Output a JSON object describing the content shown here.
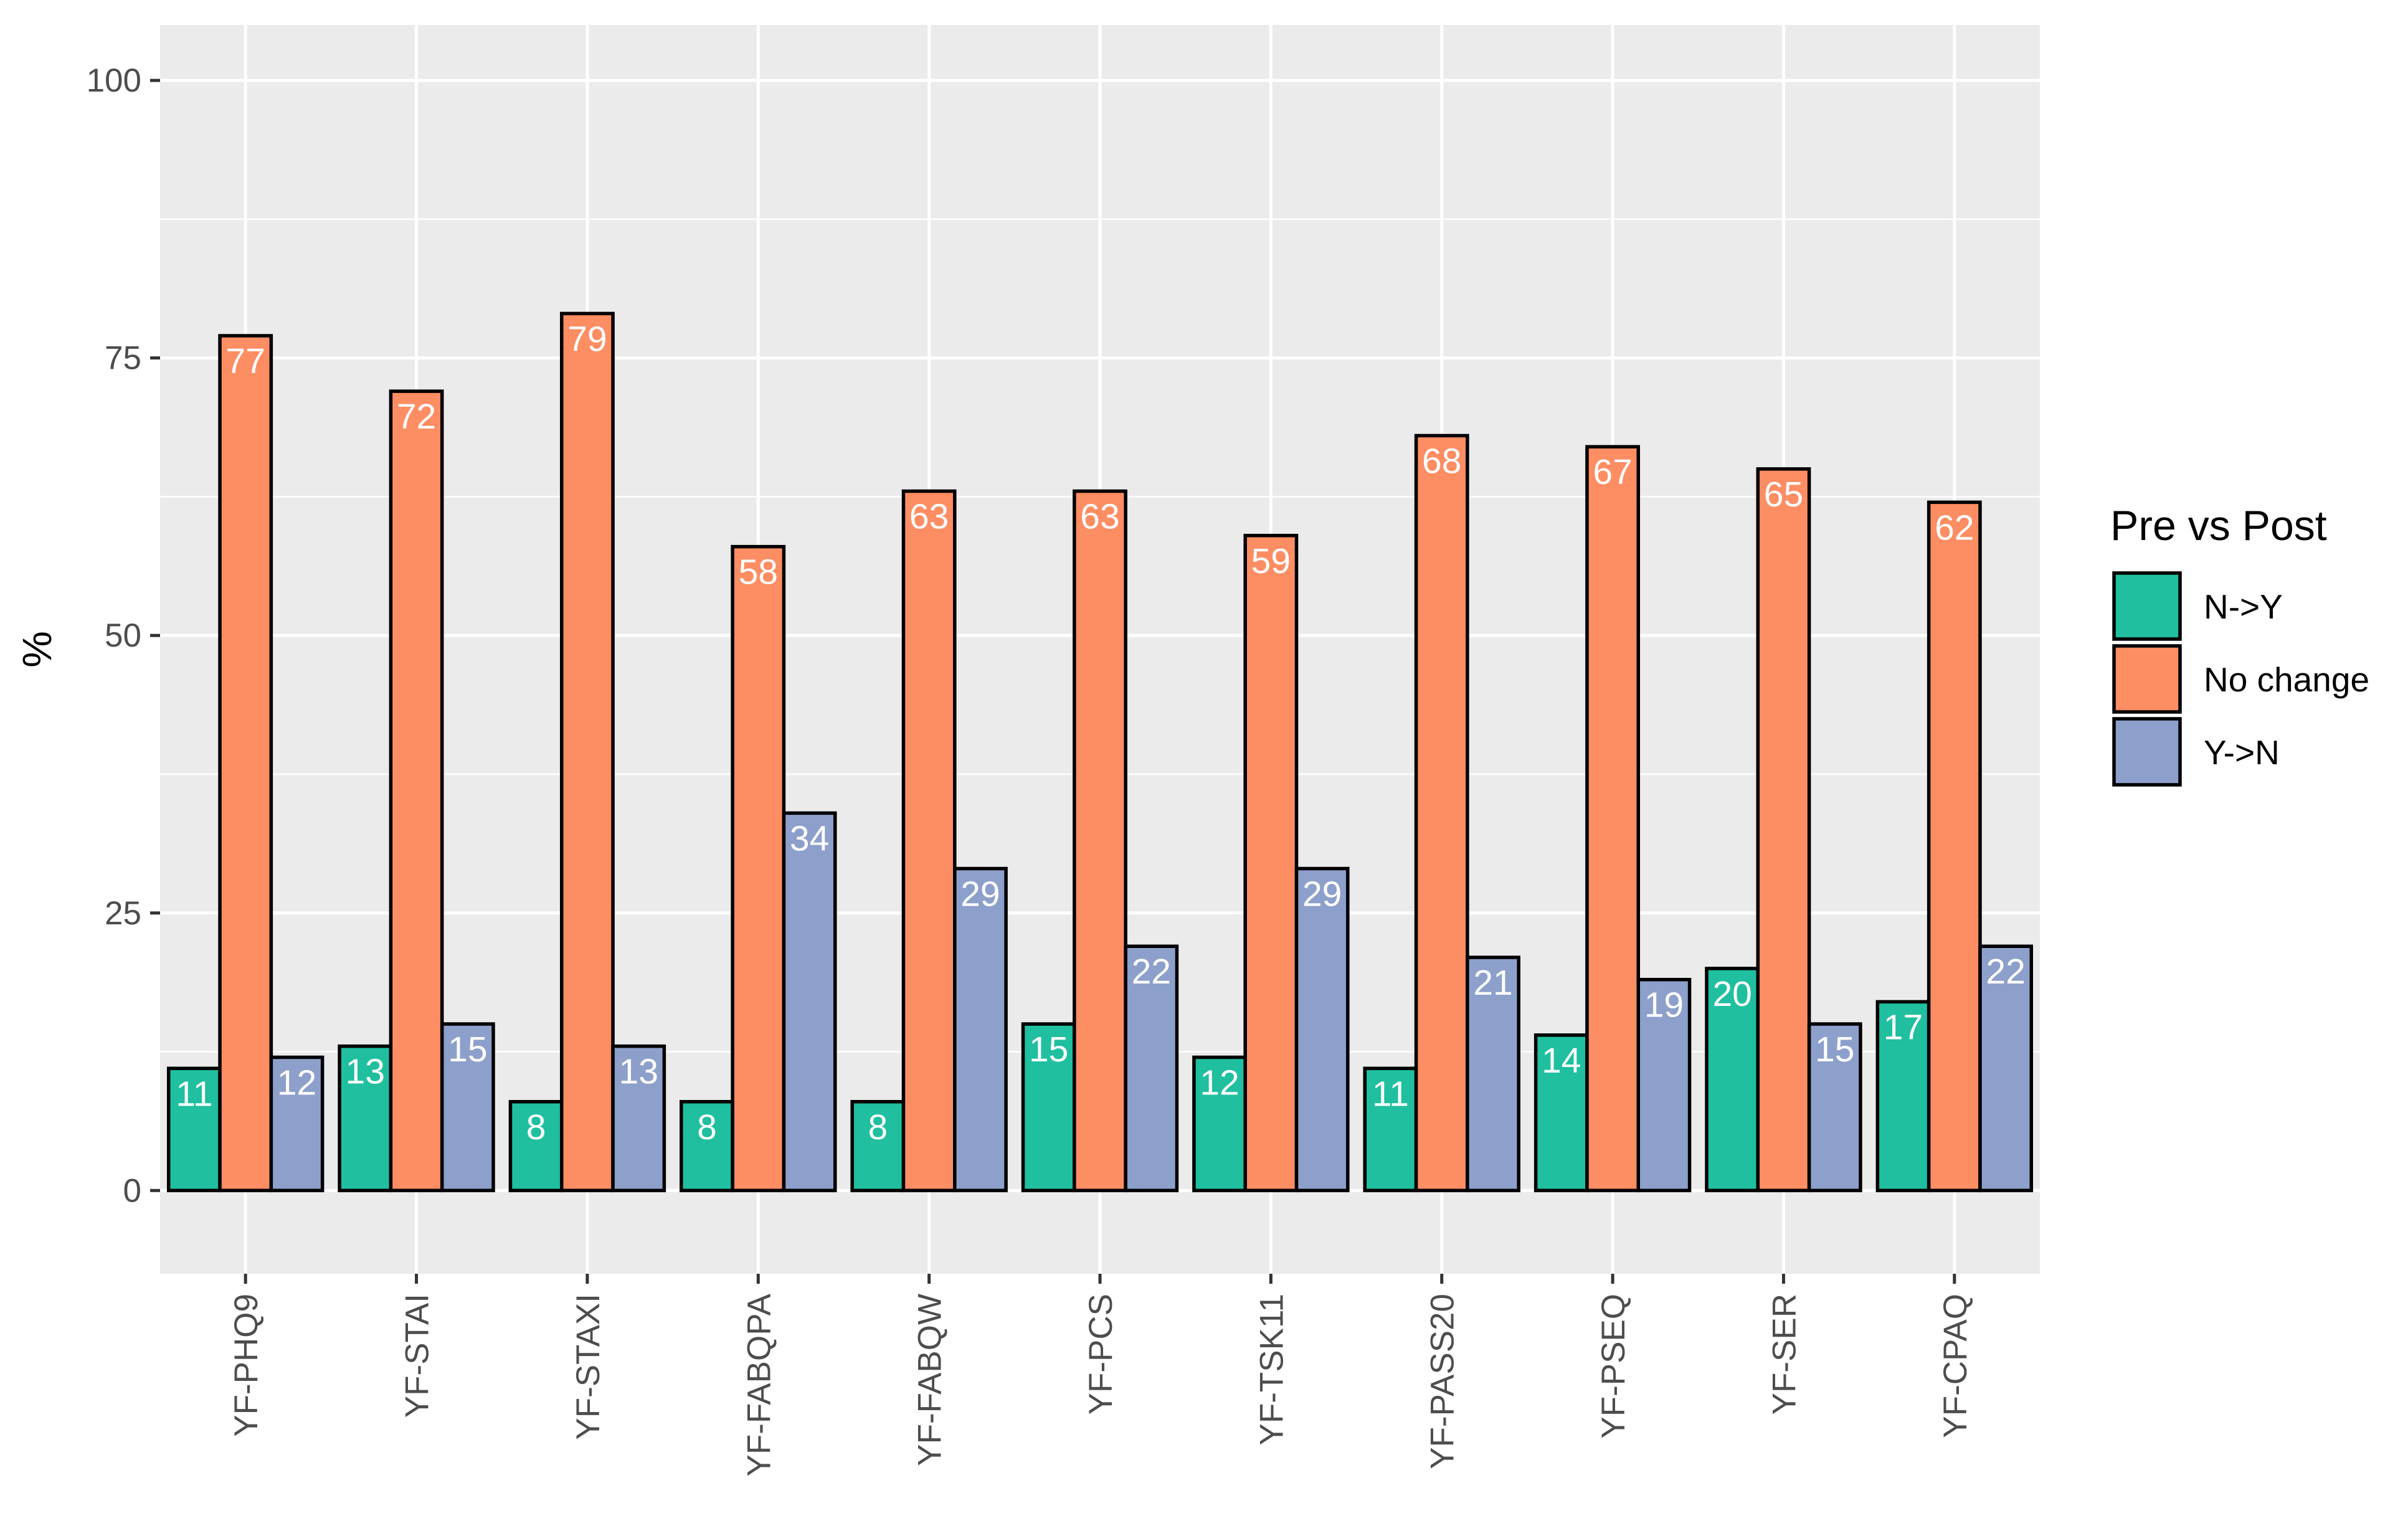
{
  "chart_data": {
    "type": "bar",
    "ylabel": "%",
    "xlabel": "",
    "ylim": [
      -7.5,
      105
    ],
    "yticks": [
      0,
      25,
      50,
      75,
      100
    ],
    "grid": true,
    "legend_position": "right",
    "legend_title": "Pre vs Post",
    "categories": [
      "YF-PHQ9",
      "YF-STAI",
      "YF-STAXI",
      "YF-FABQPA",
      "YF-FABQW",
      "YF-PCS",
      "YF-TSK11",
      "YF-PASS20",
      "YF-PSEQ",
      "YF-SER",
      "YF-CPAQ"
    ],
    "series": [
      {
        "name": "N->Y",
        "color": "#1fbf9f",
        "values": [
          11,
          13,
          8,
          8,
          8,
          15,
          12,
          11,
          14,
          20,
          17
        ]
      },
      {
        "name": "No change",
        "color": "#fd8d62",
        "values": [
          77,
          72,
          79,
          58,
          63,
          63,
          59,
          68,
          67,
          65,
          62
        ]
      },
      {
        "name": "Y->N",
        "color": "#8da0cb",
        "values": [
          12,
          15,
          13,
          34,
          29,
          22,
          29,
          21,
          19,
          15,
          22
        ]
      }
    ]
  }
}
